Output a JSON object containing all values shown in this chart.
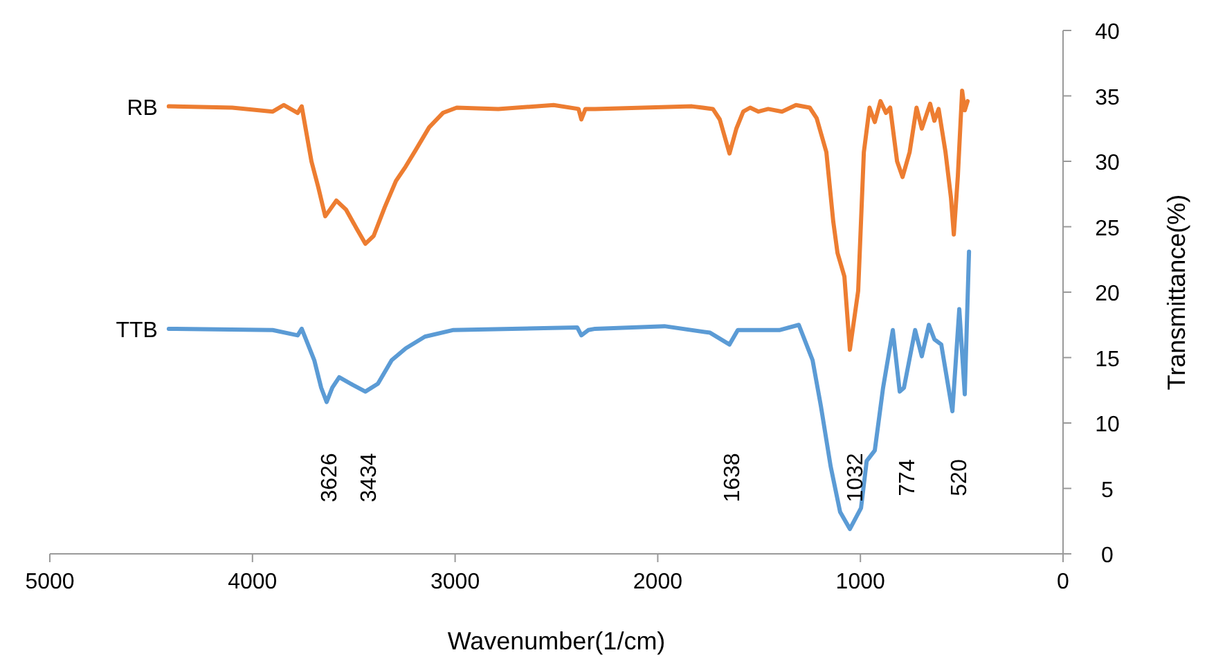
{
  "chart_data": {
    "type": "line",
    "xlabel": "Wavenumber(1/cm)",
    "ylabel": "Transmittance(%)",
    "xlim": [
      5000,
      0
    ],
    "xticks": [
      5000,
      4000,
      3000,
      2000,
      1000,
      0
    ],
    "ylim": [
      0,
      40
    ],
    "yticks": [
      0,
      5,
      10,
      15,
      20,
      25,
      30,
      35,
      40
    ],
    "grid": false,
    "legend": false,
    "marker": "none",
    "line_style": "solid",
    "annotations": [
      "3626",
      "3434",
      "1638",
      "1032",
      "774",
      "520"
    ],
    "series": [
      {
        "name": "RB",
        "color": "#ed7d31",
        "x": [
          4413,
          4100,
          3900,
          3846,
          3777,
          3757,
          3709,
          3675,
          3641,
          3586,
          3538,
          3484,
          3443,
          3402,
          3347,
          3292,
          3244,
          3197,
          3128,
          3060,
          2992,
          2787,
          2514,
          2391,
          2377,
          2357,
          2309,
          1831,
          1728,
          1694,
          1646,
          1612,
          1578,
          1544,
          1503,
          1455,
          1387,
          1318,
          1250,
          1216,
          1168,
          1134,
          1113,
          1079,
          1052,
          1011,
          983,
          955,
          929,
          901,
          874,
          853,
          819,
          792,
          757,
          723,
          697,
          656,
          635,
          614,
          580,
          553,
          539,
          519,
          498,
          485,
          471
        ],
        "values": [
          34.2,
          34.1,
          33.8,
          34.3,
          33.7,
          34.2,
          30,
          28,
          25.8,
          27,
          26.3,
          24.8,
          23.7,
          24.3,
          26.5,
          28.5,
          29.6,
          30.8,
          32.6,
          33.7,
          34.1,
          34,
          34.3,
          34,
          33.2,
          34,
          34,
          34.2,
          34,
          33.2,
          30.6,
          32.5,
          33.8,
          34.1,
          33.8,
          34,
          33.8,
          34.3,
          34.1,
          33.3,
          30.7,
          25.4,
          23,
          21.2,
          15.6,
          20.1,
          30.7,
          34.1,
          33,
          34.6,
          33.7,
          34.1,
          30,
          28.8,
          30.7,
          34.1,
          32.5,
          34.4,
          33.1,
          34,
          30.7,
          27.2,
          24.4,
          28.9,
          35.4,
          33.9,
          34.6
        ]
      },
      {
        "name": "TTB",
        "color": "#5b9bd5",
        "x": [
          4413,
          3900,
          3777,
          3757,
          3695,
          3661,
          3634,
          3606,
          3572,
          3504,
          3443,
          3381,
          3313,
          3244,
          3149,
          3012,
          2397,
          2377,
          2343,
          2309,
          1967,
          1742,
          1646,
          1605,
          1400,
          1304,
          1236,
          1195,
          1147,
          1100,
          1052,
          997,
          969,
          929,
          888,
          840,
          806,
          785,
          730,
          697,
          662,
          635,
          601,
          546,
          512,
          485,
          464
        ],
        "values": [
          17.2,
          17.1,
          16.7,
          17.2,
          14.8,
          12.7,
          11.6,
          12.7,
          13.5,
          12.9,
          12.4,
          13,
          14.8,
          15.7,
          16.6,
          17.1,
          17.3,
          16.7,
          17.1,
          17.2,
          17.4,
          16.9,
          16,
          17.1,
          17.1,
          17.5,
          14.8,
          11.3,
          6.7,
          3.2,
          1.9,
          3.5,
          7.1,
          7.9,
          12.7,
          17.1,
          12.4,
          12.7,
          17.1,
          15.1,
          17.5,
          16.4,
          16,
          10.9,
          18.7,
          12.2,
          23.1
        ]
      }
    ]
  }
}
